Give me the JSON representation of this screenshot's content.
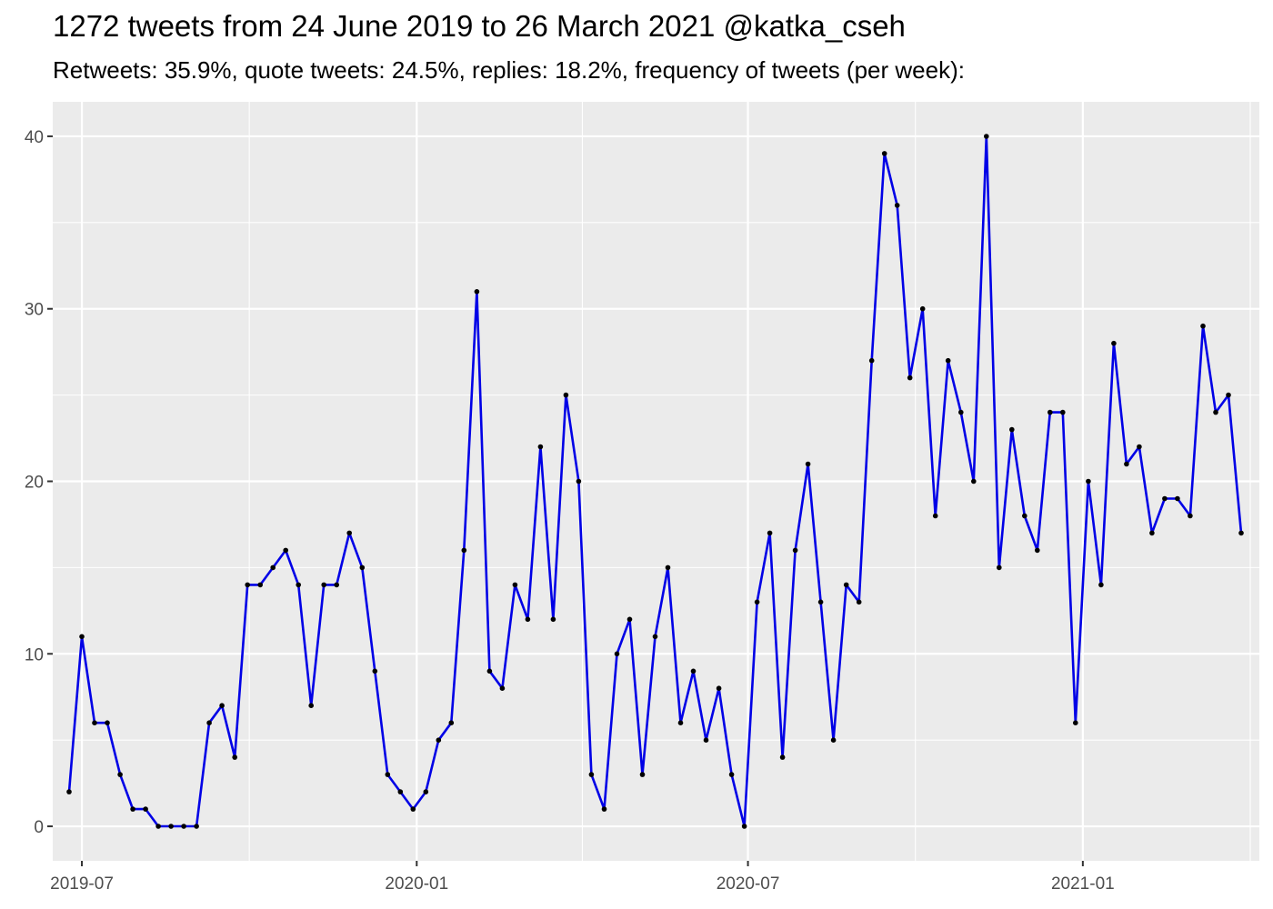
{
  "chart_data": {
    "type": "line",
    "title": "1272 tweets from 24 June 2019 to 26 March 2021 @katka_cseh",
    "subtitle": "Retweets: 35.9%, quote tweets: 24.5%, replies: 18.2%, frequency of tweets (per week):",
    "xlabel": "",
    "ylabel": "",
    "ylim": [
      -2,
      42
    ],
    "yticks": [
      0,
      10,
      20,
      30,
      40
    ],
    "xlim": [
      "2019-06-15",
      "2021-04-08"
    ],
    "xticks": [
      {
        "date": "2019-07-01",
        "label": "2019-07"
      },
      {
        "date": "2020-01-01",
        "label": "2020-01"
      },
      {
        "date": "2020-07-01",
        "label": "2020-07"
      },
      {
        "date": "2021-01-01",
        "label": "2021-01"
      }
    ],
    "grid": true,
    "line_color": "#0000e6",
    "point_color": "#000000",
    "background_color": "#ebebeb",
    "x_start": "2019-06-24",
    "x_step_days": 7,
    "values": [
      2,
      11,
      6,
      6,
      3,
      1,
      1,
      0,
      0,
      0,
      0,
      6,
      7,
      4,
      14,
      14,
      15,
      16,
      14,
      7,
      14,
      14,
      17,
      15,
      9,
      3,
      2,
      1,
      2,
      5,
      6,
      16,
      31,
      9,
      8,
      14,
      12,
      22,
      12,
      25,
      20,
      3,
      1,
      10,
      12,
      3,
      11,
      15,
      6,
      9,
      5,
      8,
      3,
      0,
      13,
      17,
      4,
      16,
      21,
      13,
      5,
      14,
      13,
      27,
      39,
      36,
      26,
      30,
      18,
      27,
      24,
      20,
      40,
      15,
      23,
      18,
      16,
      24,
      24,
      6,
      20,
      14,
      28,
      21,
      22,
      17,
      19,
      19,
      18,
      29,
      24,
      25,
      17
    ]
  }
}
